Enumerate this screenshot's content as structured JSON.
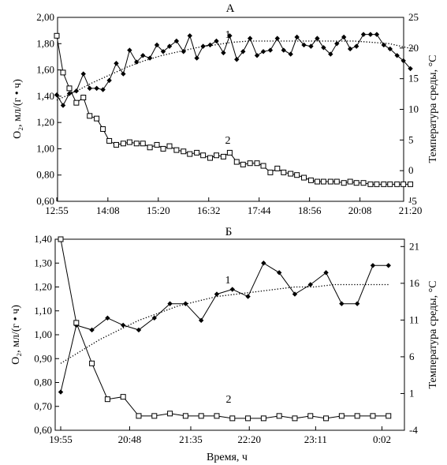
{
  "figure": {
    "xlabel": "Время, ч"
  },
  "chart_data": [
    {
      "type": "line",
      "title": "А",
      "ylabel": "O₂, мл/(г • ч)",
      "y2label": "Температура среды, °С",
      "ylim": [
        0.6,
        2.0
      ],
      "yticks": [
        "0,60",
        "0,80",
        "1,00",
        "1,20",
        "1,40",
        "1,60",
        "1,80",
        "2,00"
      ],
      "y2lim": [
        -5,
        25
      ],
      "y2ticks": [
        "-5",
        "0",
        "5",
        "10",
        "15",
        "20",
        "25"
      ],
      "xlim": [
        0,
        510
      ],
      "xticks": [
        {
          "label": "12:55",
          "x": 0
        },
        {
          "label": "14:08",
          "x": 73
        },
        {
          "label": "15:20",
          "x": 145
        },
        {
          "label": "16:32",
          "x": 217
        },
        {
          "label": "17:44",
          "x": 289
        },
        {
          "label": "18:56",
          "x": 361
        },
        {
          "label": "20:08",
          "x": 433
        },
        {
          "label": "21:20",
          "x": 505
        }
      ],
      "series": [
        {
          "name": "1",
          "marker": "diamond",
          "axis": "left",
          "x": [
            0,
            9,
            18,
            28,
            38,
            47,
            57,
            66,
            75,
            85,
            95,
            104,
            114,
            123,
            133,
            143,
            152,
            161,
            171,
            181,
            190,
            200,
            209,
            219,
            228,
            238,
            247,
            257,
            266,
            276,
            286,
            295,
            305,
            315,
            324,
            334,
            343,
            353,
            363,
            372,
            381,
            391,
            400,
            410,
            419,
            428,
            438,
            448,
            457,
            467,
            476,
            486,
            495,
            505
          ],
          "values": [
            1.41,
            1.33,
            1.42,
            1.44,
            1.57,
            1.46,
            1.46,
            1.45,
            1.52,
            1.65,
            1.57,
            1.75,
            1.66,
            1.71,
            1.69,
            1.79,
            1.74,
            1.78,
            1.82,
            1.74,
            1.86,
            1.69,
            1.78,
            1.79,
            1.82,
            1.73,
            1.86,
            1.68,
            1.74,
            1.84,
            1.71,
            1.74,
            1.75,
            1.84,
            1.75,
            1.72,
            1.85,
            1.79,
            1.78,
            1.84,
            1.77,
            1.72,
            1.8,
            1.85,
            1.76,
            1.78,
            1.87,
            1.87,
            1.87,
            1.79,
            1.76,
            1.71,
            1.67,
            1.61
          ]
        },
        {
          "name": "2",
          "marker": "square",
          "axis": "left",
          "x": [
            0,
            9,
            18,
            28,
            38,
            47,
            57,
            66,
            75,
            85,
            95,
            104,
            114,
            123,
            133,
            143,
            152,
            161,
            171,
            181,
            190,
            200,
            209,
            219,
            228,
            238,
            247,
            257,
            266,
            276,
            286,
            295,
            305,
            315,
            324,
            334,
            343,
            353,
            363,
            372,
            381,
            391,
            400,
            410,
            419,
            428,
            438,
            448,
            457,
            467,
            476,
            486,
            495,
            505
          ],
          "values": [
            1.86,
            1.58,
            1.46,
            1.35,
            1.39,
            1.25,
            1.23,
            1.15,
            1.06,
            1.03,
            1.04,
            1.05,
            1.04,
            1.04,
            1.01,
            1.03,
            1.0,
            1.02,
            0.99,
            0.98,
            0.96,
            0.97,
            0.95,
            0.93,
            0.95,
            0.94,
            0.97,
            0.9,
            0.88,
            0.89,
            0.89,
            0.87,
            0.82,
            0.85,
            0.82,
            0.81,
            0.8,
            0.78,
            0.76,
            0.75,
            0.75,
            0.75,
            0.75,
            0.74,
            0.75,
            0.74,
            0.74,
            0.73,
            0.73,
            0.73,
            0.73,
            0.73,
            0.73,
            0.73
          ]
        }
      ],
      "trendlines": [
        {
          "series": "1",
          "x": [
            0,
            25,
            50,
            75,
            100,
            125,
            150,
            175,
            200,
            225,
            250,
            275,
            300,
            325,
            350,
            375,
            400,
            425,
            450,
            475,
            500,
            510
          ],
          "values": [
            1.37,
            1.43,
            1.5,
            1.56,
            1.62,
            1.67,
            1.71,
            1.74,
            1.77,
            1.79,
            1.81,
            1.82,
            1.82,
            1.82,
            1.82,
            1.82,
            1.82,
            1.82,
            1.81,
            1.8,
            1.77,
            1.76
          ]
        }
      ]
    },
    {
      "type": "line",
      "title": "Б",
      "ylabel": "O₂, мл/(г • ч)",
      "y2label": "Температура среды, °С",
      "ylim": [
        0.6,
        1.4
      ],
      "yticks": [
        "0,60",
        "0,70",
        "0,80",
        "0,90",
        "1,00",
        "1,10",
        "1,20",
        "1,30",
        "1,40"
      ],
      "y2lim": [
        -4,
        22
      ],
      "y2ticks": [
        "-4",
        "1",
        "6",
        "11",
        "16",
        "21"
      ],
      "y2tick_values": [
        -4,
        1,
        6,
        11,
        16,
        21
      ],
      "xlim": [
        0,
        257
      ],
      "xticks": [
        {
          "label": "19:55",
          "x": 0
        },
        {
          "label": "20:48",
          "x": 53
        },
        {
          "label": "21:35",
          "x": 100
        },
        {
          "label": "22:20",
          "x": 145
        },
        {
          "label": "23:11",
          "x": 196
        },
        {
          "label": "0:02",
          "x": 247
        }
      ],
      "series": [
        {
          "name": "1",
          "marker": "diamond",
          "axis": "left",
          "x": [
            0,
            12,
            24,
            36,
            48,
            60,
            72,
            84,
            96,
            108,
            120,
            132,
            144,
            156,
            168,
            180,
            192,
            204,
            216,
            228,
            240,
            252
          ],
          "values": [
            0.76,
            1.04,
            1.02,
            1.07,
            1.04,
            1.02,
            1.07,
            1.13,
            1.13,
            1.06,
            1.17,
            1.19,
            1.16,
            1.3,
            1.26,
            1.17,
            1.21,
            1.26,
            1.13,
            1.13,
            1.29,
            1.29
          ]
        },
        {
          "name": "2",
          "marker": "square",
          "axis": "left",
          "x": [
            0,
            12,
            24,
            36,
            48,
            60,
            72,
            84,
            96,
            108,
            120,
            132,
            144,
            156,
            168,
            180,
            192,
            204,
            216,
            228,
            240,
            252
          ],
          "values": [
            1.4,
            1.05,
            0.88,
            0.73,
            0.74,
            0.66,
            0.66,
            0.67,
            0.66,
            0.66,
            0.66,
            0.65,
            0.65,
            0.65,
            0.66,
            0.65,
            0.66,
            0.65,
            0.66,
            0.66,
            0.66,
            0.66
          ]
        }
      ],
      "trendlines": [
        {
          "series": "1",
          "x": [
            0,
            15,
            30,
            45,
            60,
            75,
            90,
            105,
            120,
            135,
            150,
            165,
            180,
            195,
            210,
            225,
            240,
            252
          ],
          "values": [
            0.88,
            0.93,
            0.98,
            1.02,
            1.06,
            1.09,
            1.12,
            1.14,
            1.16,
            1.17,
            1.18,
            1.19,
            1.2,
            1.2,
            1.21,
            1.21,
            1.21,
            1.21
          ]
        }
      ]
    }
  ]
}
